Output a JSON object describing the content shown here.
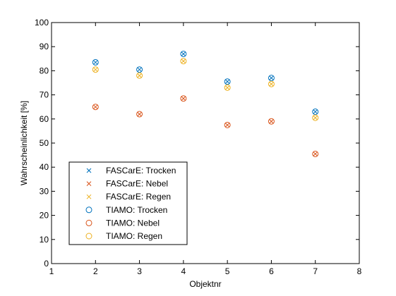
{
  "chart_data": {
    "type": "scatter",
    "xlabel": "Objektnr",
    "ylabel": "Wahrscheinlichkeit [%]",
    "xlim": [
      1,
      8
    ],
    "ylim": [
      0,
      100
    ],
    "xticks": [
      "1",
      "2",
      "3",
      "4",
      "5",
      "6",
      "7",
      "8"
    ],
    "yticks": [
      "0",
      "10",
      "20",
      "30",
      "40",
      "50",
      "60",
      "70",
      "80",
      "90",
      "100"
    ],
    "grid": false,
    "legend_position": "bottom-left",
    "series": [
      {
        "name": "FASCarE: Trocken",
        "marker": "x",
        "color": "#0072BD",
        "x": [
          2,
          3,
          4,
          5,
          6,
          7
        ],
        "y": [
          83.5,
          80.5,
          87,
          75.5,
          77,
          63
        ]
      },
      {
        "name": "FASCarE: Nebel",
        "marker": "x",
        "color": "#D95319",
        "x": [
          2,
          3,
          4,
          5,
          6,
          7
        ],
        "y": [
          65,
          62,
          68.5,
          57.5,
          59,
          45.5
        ]
      },
      {
        "name": "FASCarE: Regen",
        "marker": "x",
        "color": "#EDB120",
        "x": [
          2,
          3,
          4,
          5,
          6,
          7
        ],
        "y": [
          80.5,
          78,
          84,
          73,
          74.5,
          60.5
        ]
      },
      {
        "name": "TIAMO: Trocken",
        "marker": "o",
        "color": "#0072BD",
        "x": [
          2,
          3,
          4,
          5,
          6,
          7
        ],
        "y": [
          83.5,
          80.5,
          87,
          75.5,
          77,
          63
        ]
      },
      {
        "name": "TIAMO: Nebel",
        "marker": "o",
        "color": "#D95319",
        "x": [
          2,
          3,
          4,
          5,
          6,
          7
        ],
        "y": [
          65,
          62,
          68.5,
          57.5,
          59,
          45.5
        ]
      },
      {
        "name": "TIAMO: Regen",
        "marker": "o",
        "color": "#EDB120",
        "x": [
          2,
          3,
          4,
          5,
          6,
          7
        ],
        "y": [
          80.5,
          78,
          84,
          73,
          74.5,
          60.5
        ]
      }
    ]
  }
}
